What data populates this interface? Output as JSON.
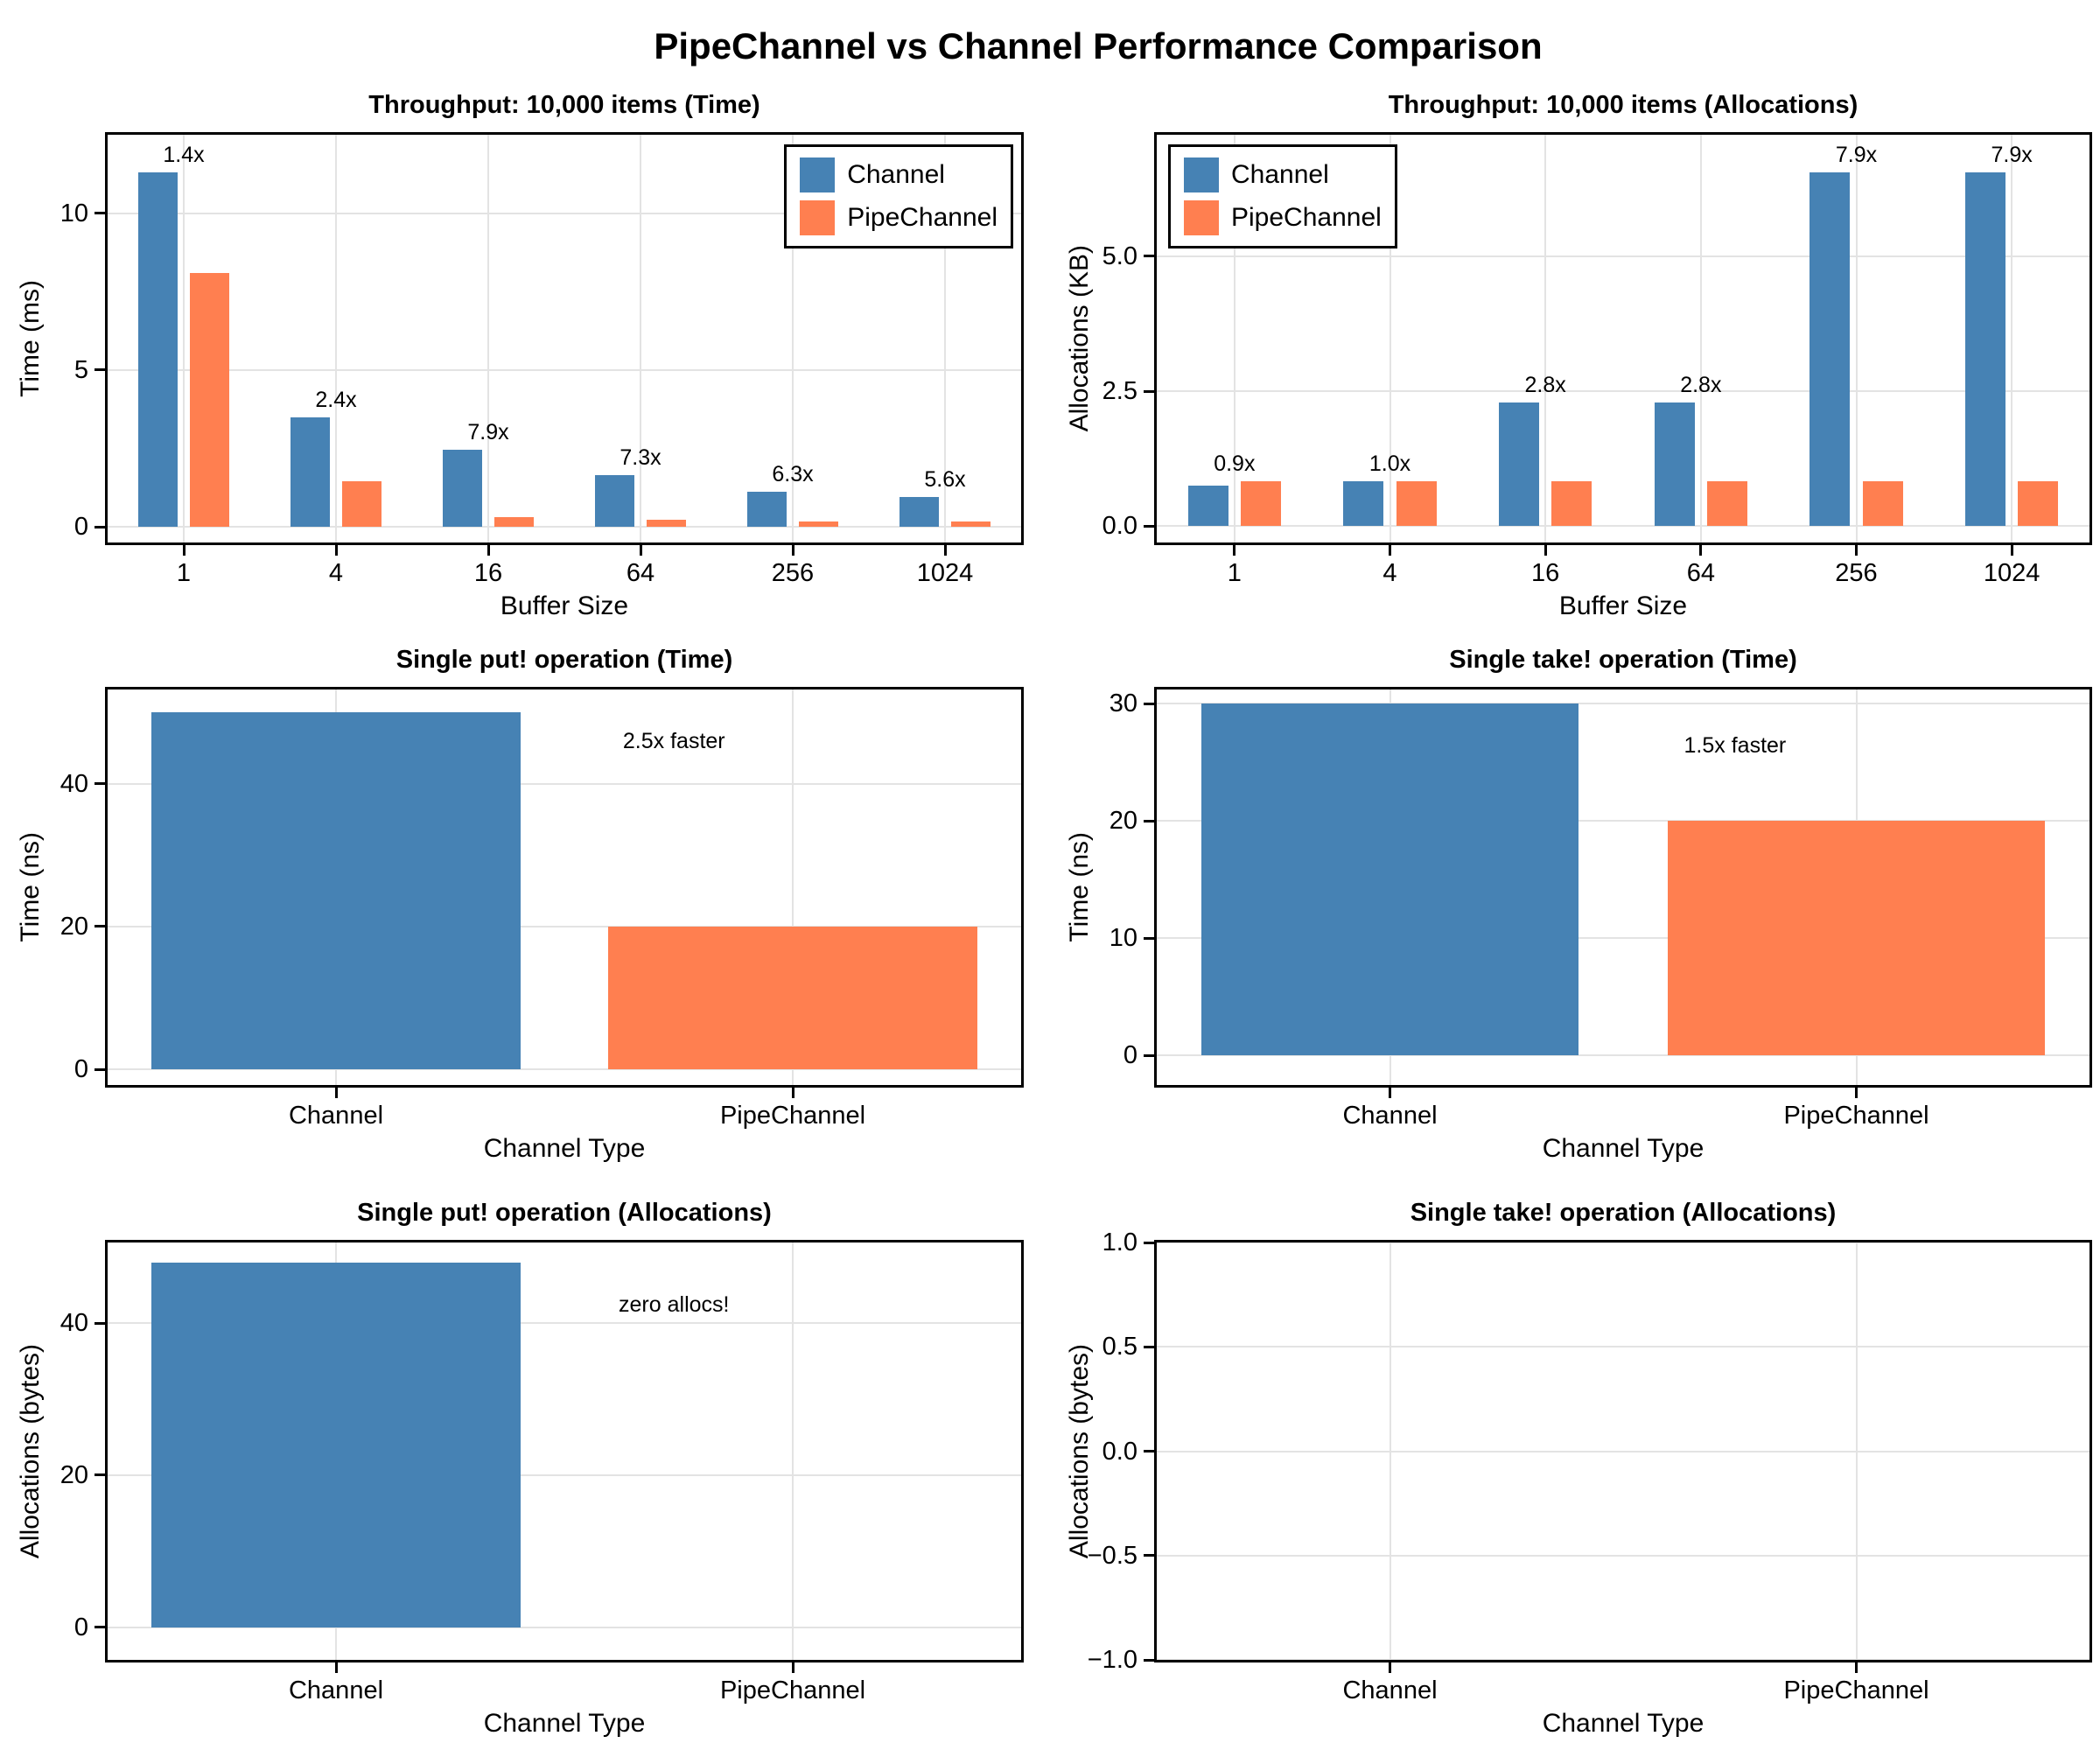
{
  "figure": {
    "title": "PipeChannel vs Channel Performance Comparison"
  },
  "colors": {
    "channel": "#4682B4",
    "pipechannel": "#FF7F50",
    "grid": "#E3E3E3",
    "spine": "#000000",
    "background": "#FFFFFF"
  },
  "legend": {
    "entries": [
      {
        "key": "channel",
        "label": "Channel"
      },
      {
        "key": "pipechannel",
        "label": "PipeChannel"
      }
    ]
  },
  "chart_data": [
    {
      "id": "throughput_time",
      "type": "bar",
      "title": "Throughput: 10,000 items (Time)",
      "xlabel": "Buffer Size",
      "ylabel": "Time (ms)",
      "categories": [
        "1",
        "4",
        "16",
        "64",
        "256",
        "1024"
      ],
      "series": [
        {
          "name": "Channel",
          "color_key": "channel",
          "values": [
            11.3,
            3.5,
            2.45,
            1.65,
            1.13,
            0.95
          ]
        },
        {
          "name": "PipeChannel",
          "color_key": "pipechannel",
          "values": [
            8.1,
            1.45,
            0.31,
            0.225,
            0.18,
            0.17
          ]
        }
      ],
      "speedup_labels": [
        "1.4x",
        "2.4x",
        "7.9x",
        "7.3x",
        "6.3x",
        "5.6x"
      ],
      "yticks": [
        0,
        5,
        10
      ],
      "ytick_labels": [
        "0",
        "5",
        "10"
      ],
      "ylim": [
        -0.5,
        12.5
      ],
      "grid": true,
      "legend": true,
      "legend_position": "top-right"
    },
    {
      "id": "throughput_allocations",
      "type": "bar",
      "title": "Throughput: 10,000 items (Allocations)",
      "xlabel": "Buffer Size",
      "ylabel": "Allocations (KB)",
      "categories": [
        "1",
        "4",
        "16",
        "64",
        "256",
        "1024"
      ],
      "series": [
        {
          "name": "Channel",
          "color_key": "channel",
          "values": [
            0.76,
            0.84,
            2.3,
            2.3,
            6.55,
            6.55
          ]
        },
        {
          "name": "PipeChannel",
          "color_key": "pipechannel",
          "values": [
            0.83,
            0.83,
            0.83,
            0.83,
            0.83,
            0.83
          ]
        }
      ],
      "speedup_labels": [
        "0.9x",
        "1.0x",
        "2.8x",
        "2.8x",
        "7.9x",
        "7.9x"
      ],
      "yticks": [
        0,
        2.5,
        5
      ],
      "ytick_labels": [
        "0.0",
        "2.5",
        "5.0"
      ],
      "ylim": [
        -0.3,
        7.25
      ],
      "grid": true,
      "legend": true,
      "legend_position": "top-left"
    },
    {
      "id": "put_time",
      "type": "bar",
      "title": "Single put! operation (Time)",
      "xlabel": "Channel Type",
      "ylabel": "Time (ns)",
      "categories": [
        "Channel",
        "PipeChannel"
      ],
      "values": [
        50,
        20
      ],
      "bar_color_keys": [
        "channel",
        "pipechannel"
      ],
      "annotation": "2.5x faster",
      "yticks": [
        0,
        20,
        40
      ],
      "ytick_labels": [
        "0",
        "20",
        "40"
      ],
      "ylim": [
        -2.2,
        53.2
      ],
      "grid": true,
      "legend": false
    },
    {
      "id": "take_time",
      "type": "bar",
      "title": "Single take! operation (Time)",
      "xlabel": "Channel Type",
      "ylabel": "Time (ns)",
      "categories": [
        "Channel",
        "PipeChannel"
      ],
      "values": [
        30,
        20
      ],
      "bar_color_keys": [
        "channel",
        "pipechannel"
      ],
      "annotation": "1.5x faster",
      "yticks": [
        0,
        10,
        20,
        30
      ],
      "ytick_labels": [
        "0",
        "10",
        "20",
        "30"
      ],
      "ylim": [
        -2.5,
        31.2
      ],
      "grid": true,
      "legend": false
    },
    {
      "id": "put_allocations",
      "type": "bar",
      "title": "Single put! operation (Allocations)",
      "xlabel": "Channel Type",
      "ylabel": "Allocations (bytes)",
      "categories": [
        "Channel",
        "PipeChannel"
      ],
      "values": [
        48,
        0
      ],
      "bar_color_keys": [
        "channel",
        "pipechannel"
      ],
      "annotation": "zero allocs!",
      "yticks": [
        0,
        20,
        40
      ],
      "ytick_labels": [
        "0",
        "20",
        "40"
      ],
      "ylim": [
        -4.3,
        50.6
      ],
      "grid": true,
      "legend": false
    },
    {
      "id": "take_allocations",
      "type": "bar",
      "title": "Single take! operation (Allocations)",
      "xlabel": "Channel Type",
      "ylabel": "Allocations (bytes)",
      "categories": [
        "Channel",
        "PipeChannel"
      ],
      "values": [
        0,
        0
      ],
      "bar_color_keys": [
        "channel",
        "pipechannel"
      ],
      "annotation": null,
      "yticks": [
        -1,
        -0.5,
        0,
        0.5,
        1
      ],
      "ytick_labels": [
        "−1.0",
        "−0.5",
        "0.0",
        "0.5",
        "1.0"
      ],
      "ylim": [
        -1,
        1
      ],
      "grid": true,
      "legend": false
    }
  ]
}
